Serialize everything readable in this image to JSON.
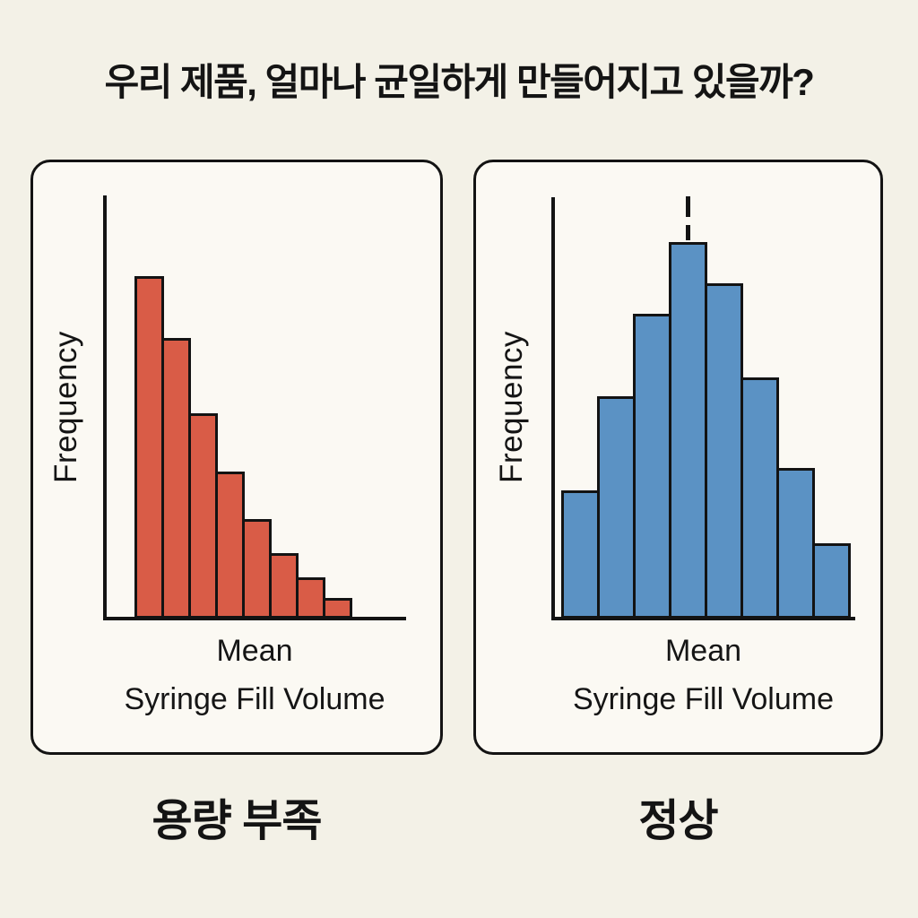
{
  "page": {
    "title": "우리 제품, 얼마나 균일하게 만들어지고 있을까?",
    "background_color": "#F3F1E7",
    "panel_background_color": "#FBF9F3",
    "line_color": "#131313"
  },
  "chart_data": [
    {
      "type": "bar",
      "subtype": "histogram",
      "panel": "left",
      "caption": "용량 부족",
      "ylabel": "Frequency",
      "xlabel_line1": "Mean",
      "xlabel_line2": "Syringe Fill Volume",
      "bar_color": "#D95C47",
      "bar_border_color": "#131313",
      "categories": [
        "bin1",
        "bin2",
        "bin3",
        "bin4",
        "bin5",
        "bin6",
        "bin7",
        "bin8"
      ],
      "values_relative_pct": [
        100,
        82,
        60,
        43,
        29,
        19,
        12,
        6
      ],
      "shape": "right-skewed, monotonically decreasing",
      "axis_ticks": "none",
      "grid": "off",
      "legend": "none",
      "mean_dashed_line": false
    },
    {
      "type": "bar",
      "subtype": "histogram",
      "panel": "right",
      "caption": "정상",
      "ylabel": "Frequency",
      "xlabel_line1": "Mean",
      "xlabel_line2": "Syringe Fill Volume",
      "bar_color": "#5B92C4",
      "bar_border_color": "#131313",
      "categories": [
        "bin1",
        "bin2",
        "bin3",
        "bin4",
        "bin5",
        "bin6",
        "bin7",
        "bin8"
      ],
      "values_relative_pct": [
        34,
        59,
        81,
        100,
        89,
        64,
        40,
        20
      ],
      "shape": "bell-shaped, symmetric around mean",
      "axis_ticks": "none",
      "grid": "off",
      "legend": "none",
      "mean_dashed_line": true,
      "mean_dashed_line_position": "above tallest central bar"
    }
  ]
}
